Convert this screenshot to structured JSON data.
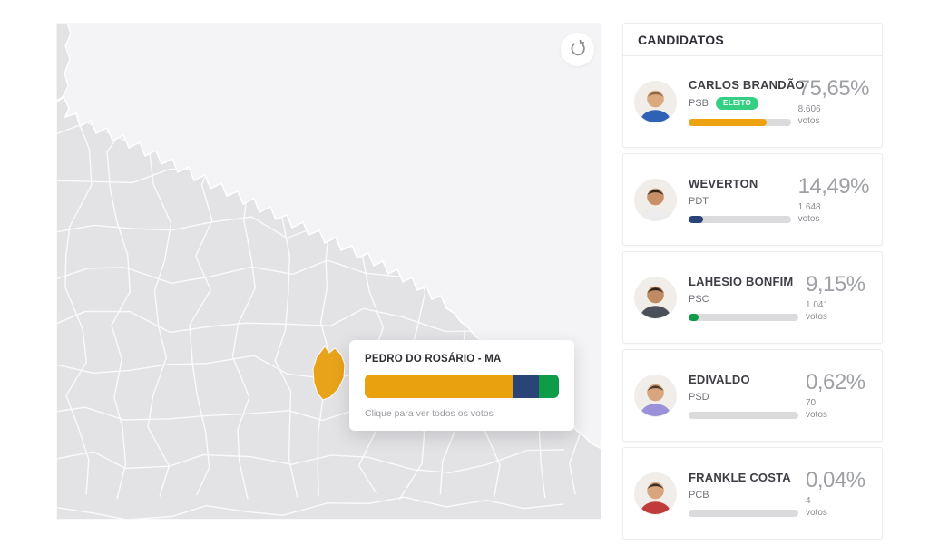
{
  "map": {
    "reset_button": {
      "icon": "rotate-ccw-icon"
    },
    "colors": {
      "sea": "#f4f3f5",
      "land": "#e3e2e5",
      "border": "#fafafb",
      "highlight": "#E9A31B"
    },
    "tooltip": {
      "title": "PEDRO DO ROSÁRIO - MA",
      "hint": "Clique para ver todos os votos",
      "segments": [
        {
          "color": "#EAA10E",
          "pct": 76
        },
        {
          "color": "#2A4477",
          "pct": 13.5
        },
        {
          "color": "#0F9C49",
          "pct": 10.5
        }
      ]
    }
  },
  "panel": {
    "title": "CANDIDATOS",
    "votes_label": "votos",
    "candidates": [
      {
        "name": "CARLOS BRANDÃO",
        "party": "PSB",
        "badge": "ELEITO",
        "percent": "75,65%",
        "votes": "8.606",
        "bar_pct": 76,
        "bar_color": "#EDA211",
        "avatar": {
          "skin": "#dba87f",
          "hair": "#8a6a42",
          "shirt": "#2f62b5"
        }
      },
      {
        "name": "WEVERTON",
        "party": "PDT",
        "badge": null,
        "percent": "14,49%",
        "votes": "1.648",
        "bar_pct": 14.5,
        "bar_color": "#2A4477",
        "avatar": {
          "skin": "#c89068",
          "hair": "#2e2620",
          "shirt": "#ececec"
        }
      },
      {
        "name": "LAHESIO BONFIM",
        "party": "PSC",
        "badge": null,
        "percent": "9,15%",
        "votes": "1.041",
        "bar_pct": 9.2,
        "bar_color": "#0F9C49",
        "avatar": {
          "skin": "#c08a62",
          "hair": "#2b241e",
          "shirt": "#4a4f58"
        }
      },
      {
        "name": "EDIVALDO",
        "party": "PSD",
        "badge": null,
        "percent": "0,62%",
        "votes": "70",
        "bar_pct": 1.2,
        "bar_color": "#d6ca3a",
        "avatar": {
          "skin": "#d9a57e",
          "hair": "#4a3a2a",
          "shirt": "#9a91d8"
        }
      },
      {
        "name": "FRANKLE COSTA",
        "party": "PCB",
        "badge": null,
        "percent": "0,04%",
        "votes": "4",
        "bar_pct": 0.4,
        "bar_color": "#c9c9c9",
        "avatar": {
          "skin": "#d9a57e",
          "hair": "#3a2f26",
          "shirt": "#c23b3b"
        }
      }
    ]
  }
}
